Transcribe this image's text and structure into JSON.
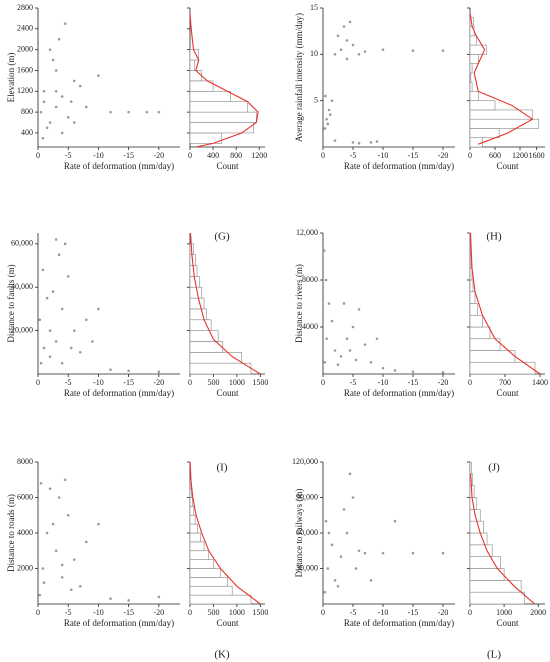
{
  "chart_data": [
    {
      "type": "scatter",
      "panel": "(G)",
      "xlabel": "Rate of deformation (mm/day)",
      "ylabel": "Elevation (m)",
      "hist_xlabel": "Count",
      "xlim": [
        0,
        -23.5
      ],
      "xticks": [
        0,
        -5,
        -10,
        -15,
        -20
      ],
      "ylim": [
        130,
        2800
      ],
      "yticks": [
        400,
        800,
        1200,
        1600,
        2000,
        2400,
        2800
      ],
      "color": "#9a9a9a",
      "x": [
        -0.5,
        -1,
        -2,
        -3,
        -4,
        -5,
        -6,
        -2.5,
        -3.5,
        -4.5,
        -1.5,
        -0.8,
        -5.5,
        -7,
        -8,
        -3,
        -4,
        -2,
        -6,
        -10,
        -12,
        -15,
        -18,
        -20,
        -1,
        -3
      ],
      "y": [
        800,
        1200,
        600,
        900,
        1100,
        700,
        1400,
        1800,
        2200,
        2500,
        500,
        300,
        1000,
        1300,
        900,
        1600,
        400,
        2000,
        600,
        1500,
        800,
        800,
        800,
        800,
        1000,
        1200
      ],
      "hist": {
        "bins": [
          200,
          400,
          600,
          800,
          1000,
          1200,
          1400,
          1600,
          1800,
          2000
        ],
        "counts": [
          550,
          1100,
          1150,
          1000,
          700,
          400,
          200,
          80,
          150
        ],
        "xlim": [
          0,
          1300
        ],
        "xticks": [
          0,
          400,
          800,
          1200
        ],
        "color": "#888888"
      },
      "curve": {
        "x": [
          0,
          20,
          60,
          150,
          100,
          300,
          650,
          1000,
          1180,
          1150,
          900,
          400,
          100
        ],
        "y": [
          2700,
          2400,
          2000,
          1800,
          1600,
          1400,
          1200,
          1000,
          800,
          600,
          400,
          200,
          130
        ],
        "color": "#e8312a"
      }
    },
    {
      "type": "scatter",
      "panel": "(H)",
      "xlabel": "Rate of deformation (mm/day)",
      "ylabel": "Average rainfall intensity (mm/day)",
      "hist_xlabel": "Count",
      "xlim": [
        0,
        -22
      ],
      "xticks": [
        0,
        -5,
        -10,
        -15,
        -20
      ],
      "ylim": [
        0,
        15
      ],
      "yticks": [
        5,
        10,
        15
      ],
      "color": "#9a9a9a",
      "x": [
        -0.3,
        -0.6,
        -1,
        -1.5,
        -0.8,
        -0.4,
        -1.2,
        -2,
        -3,
        -4,
        -5,
        -6,
        -7,
        -2.5,
        -3.5,
        -4.5,
        -10,
        -15,
        -20,
        -5,
        -8,
        -2,
        -6,
        -9,
        -4
      ],
      "y": [
        2,
        3,
        4,
        5,
        2.5,
        5.5,
        3.5,
        10,
        10.5,
        9.5,
        11,
        10,
        10.3,
        12,
        13,
        13.5,
        10.5,
        10.4,
        10.4,
        0.5,
        0.5,
        0.7,
        0.4,
        0.6,
        11.5
      ],
      "hist": {
        "bins": [
          0,
          1,
          2,
          3,
          4,
          5,
          6,
          7,
          8,
          9,
          10,
          11,
          12,
          13,
          14
        ],
        "counts": [
          300,
          700,
          1650,
          1500,
          600,
          200,
          50,
          20,
          50,
          200,
          400,
          150,
          100,
          80
        ],
        "xlim": [
          0,
          1800
        ],
        "xticks": [
          0,
          600,
          1200,
          1600
        ],
        "color": "#888888"
      },
      "curve": {
        "x": [
          0,
          50,
          150,
          350,
          200,
          100,
          200,
          1000,
          1500,
          900,
          200
        ],
        "y": [
          14.5,
          13,
          12,
          10.5,
          9,
          8,
          6,
          4.5,
          3,
          1.5,
          0.3
        ],
        "color": "#e8312a"
      }
    },
    {
      "type": "scatter",
      "panel": "(I)",
      "xlabel": "Rate of deformation (mm/day)",
      "ylabel": "Distance to faults (m)",
      "hist_xlabel": "Count",
      "xlim": [
        0,
        -23.5
      ],
      "xticks": [
        0,
        -5,
        -10,
        -15,
        -20
      ],
      "ylim": [
        0,
        65000
      ],
      "yticks": [
        {
          "value": 20000,
          "label": "20,000"
        },
        {
          "value": 40000,
          "label": "40,000"
        },
        {
          "value": 60000,
          "label": "60,000"
        }
      ],
      "color": "#9a9a9a",
      "x": [
        -0.5,
        -1,
        -0.3,
        -2,
        -3,
        -4,
        -5,
        -3.5,
        -4.5,
        -2.5,
        -6,
        -7,
        -8,
        -10,
        -12,
        -1.5,
        -0.8,
        -5.5,
        -4,
        -3,
        -15,
        -20,
        -9,
        -2
      ],
      "y": [
        5000,
        12000,
        25000,
        8000,
        15000,
        30000,
        45000,
        55000,
        60000,
        38000,
        20000,
        10000,
        25000,
        30000,
        2000,
        35000,
        48000,
        12000,
        5000,
        62000,
        1500,
        1000,
        15000,
        20000
      ],
      "hist": {
        "bins": [
          0,
          5000,
          10000,
          15000,
          20000,
          25000,
          30000,
          35000,
          40000,
          45000,
          50000,
          55000,
          60000
        ],
        "counts": [
          1300,
          1100,
          700,
          600,
          450,
          350,
          300,
          250,
          200,
          150,
          120,
          80
        ],
        "xlim": [
          0,
          1600
        ],
        "xticks": [
          0,
          500,
          1000,
          1500
        ],
        "color": "#888888"
      },
      "curve": {
        "x": [
          1500,
          900,
          500,
          300,
          180,
          90,
          40,
          10
        ],
        "y": [
          0,
          8000,
          16000,
          25000,
          35000,
          45000,
          55000,
          65000
        ],
        "color": "#e8312a"
      }
    },
    {
      "type": "scatter",
      "panel": "(J)",
      "xlabel": "Rate of deformation (mm/day)",
      "ylabel": "Distance to rivers (m)",
      "hist_xlabel": "Count",
      "xlim": [
        0,
        -22
      ],
      "xticks": [
        0,
        -5,
        -10,
        -15,
        -20
      ],
      "ylim": [
        0,
        12000
      ],
      "yticks": [
        4000,
        8000,
        {
          "value": 12000,
          "label": "12,000"
        }
      ],
      "color": "#9a9a9a",
      "x": [
        -0.3,
        -0.6,
        -1,
        -0.2,
        -2,
        -3,
        -4,
        -5,
        -6,
        -7,
        -8,
        -3.5,
        -4.5,
        -2.5,
        -1.5,
        -10,
        -12,
        -15,
        -20,
        -0.5,
        -5.5,
        -9
      ],
      "y": [
        1000,
        3000,
        6000,
        10500,
        2000,
        1500,
        3000,
        4000,
        5500,
        2500,
        1000,
        6000,
        2000,
        800,
        4500,
        500,
        300,
        200,
        150,
        8000,
        1200,
        3000
      ],
      "hist": {
        "bins": [
          0,
          1000,
          2000,
          3000,
          4000,
          5000,
          6000,
          7000,
          8000,
          9000,
          10000,
          11000,
          12000
        ],
        "counts": [
          1300,
          900,
          600,
          400,
          250,
          150,
          100,
          60,
          40,
          20,
          10,
          5
        ],
        "xlim": [
          0,
          1500
        ],
        "xticks": [
          0,
          700,
          1400
        ],
        "color": "#888888"
      },
      "curve": {
        "x": [
          1400,
          900,
          500,
          250,
          100,
          40,
          10
        ],
        "y": [
          0,
          1500,
          3000,
          5000,
          7000,
          9000,
          12000
        ],
        "color": "#e8312a"
      }
    },
    {
      "type": "scatter",
      "panel": "(K)",
      "xlabel": "Rate of deformation (mm/day)",
      "ylabel": "Distance to roads (m)",
      "hist_xlabel": "Count",
      "xlim": [
        0,
        -23.5
      ],
      "xticks": [
        0,
        -5,
        -10,
        -15,
        -20
      ],
      "ylim": [
        0,
        8000
      ],
      "yticks": [
        2000,
        4000,
        6000,
        8000
      ],
      "color": "#9a9a9a",
      "x": [
        -0.3,
        -0.8,
        -1.5,
        -2,
        -3,
        -4,
        -5,
        -6,
        -7,
        -3.5,
        -4.5,
        -2.5,
        -0.5,
        -1,
        -8,
        -10,
        -12,
        -15,
        -20,
        -5.5,
        -4
      ],
      "y": [
        500,
        2000,
        4000,
        6500,
        3000,
        1500,
        5000,
        2500,
        1000,
        6000,
        7000,
        4500,
        6800,
        1200,
        3500,
        4500,
        300,
        200,
        400,
        800,
        2200
      ],
      "hist": {
        "bins": [
          0,
          500,
          1000,
          1500,
          2000,
          2500,
          3000,
          3500,
          4000,
          4500,
          5000,
          5500,
          6000,
          6500,
          7000
        ],
        "counts": [
          1300,
          900,
          800,
          650,
          500,
          400,
          300,
          220,
          160,
          110,
          80,
          50,
          30,
          20
        ],
        "xlim": [
          0,
          1600
        ],
        "xticks": [
          0,
          500,
          1000,
          1500
        ],
        "color": "#888888"
      },
      "curve": {
        "x": [
          1500,
          1000,
          650,
          400,
          250,
          130,
          60,
          20,
          5
        ],
        "y": [
          0,
          1000,
          2000,
          3000,
          4000,
          5000,
          6000,
          7000,
          8000
        ],
        "color": "#e8312a"
      }
    },
    {
      "type": "scatter",
      "panel": "(L)",
      "xlabel": "Rate of deformation (mm/day)",
      "ylabel": "Distance to railways (m)",
      "hist_xlabel": "Count",
      "xlim": [
        0,
        -22
      ],
      "xticks": [
        0,
        -5,
        -10,
        -15,
        -20
      ],
      "ylim": [
        0,
        120000
      ],
      "yticks": [
        {
          "value": 30000,
          "label": "30,000"
        },
        {
          "value": 60000,
          "label": "60,000"
        },
        {
          "value": 90000,
          "label": "90,000"
        },
        {
          "value": 120000,
          "label": "120,000"
        }
      ],
      "color": "#9a9a9a",
      "x": [
        -0.3,
        -0.8,
        -1.5,
        -0.5,
        -2,
        -3,
        -4,
        -5,
        -4.5,
        -3.5,
        -6,
        -7,
        -8,
        -10,
        -12,
        -15,
        -20,
        -2.5,
        -5.5,
        -1
      ],
      "y": [
        10000,
        30000,
        50000,
        70000,
        20000,
        40000,
        60000,
        90000,
        110000,
        80000,
        45000,
        43000,
        20000,
        43000,
        70000,
        43000,
        43000,
        15000,
        30000,
        60000
      ],
      "hist": {
        "bins": [
          0,
          10000,
          20000,
          30000,
          40000,
          50000,
          60000,
          70000,
          80000,
          90000,
          100000,
          110000,
          120000
        ],
        "counts": [
          1600,
          1500,
          1000,
          900,
          650,
          500,
          400,
          300,
          200,
          120,
          80,
          40
        ],
        "xlim": [
          0,
          2200
        ],
        "xticks": [
          0,
          1000,
          2000
        ],
        "color": "#888888"
      },
      "curve": {
        "x": [
          1900,
          1300,
          800,
          500,
          300,
          150,
          60,
          20
        ],
        "y": [
          0,
          15000,
          30000,
          45000,
          60000,
          75000,
          90000,
          110000
        ],
        "color": "#e8312a"
      }
    }
  ]
}
